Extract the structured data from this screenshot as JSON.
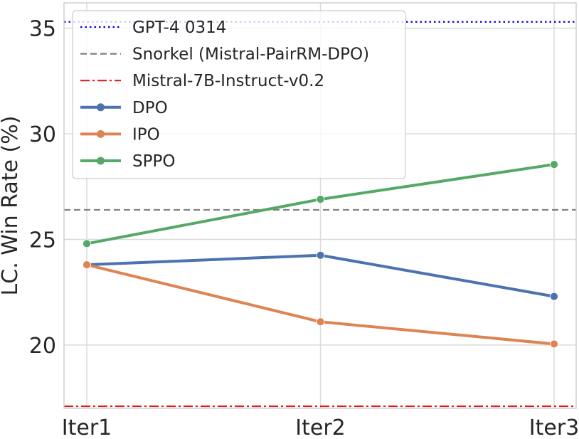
{
  "chart_data": {
    "type": "line",
    "title": "",
    "xlabel": "",
    "ylabel": "LC. Win Rate (%)",
    "categories": [
      "Iter1",
      "Iter2",
      "Iter3"
    ],
    "ylim": [
      17.0,
      36.2
    ],
    "yticks": [
      20,
      25,
      30,
      35
    ],
    "grid": true,
    "legend_position": "upper-left",
    "series": [
      {
        "name": "DPO",
        "values": [
          23.8,
          24.25,
          22.3
        ],
        "color": "#4c72b0",
        "marker": "circle",
        "style": "solid"
      },
      {
        "name": "IPO",
        "values": [
          23.8,
          21.1,
          20.05
        ],
        "color": "#dd8452",
        "marker": "circle",
        "style": "solid"
      },
      {
        "name": "SPPO",
        "values": [
          24.8,
          26.9,
          28.55
        ],
        "color": "#55a868",
        "marker": "circle",
        "style": "solid"
      }
    ],
    "reference_lines": [
      {
        "name": "GPT-4 0314",
        "value": 35.3,
        "color": "#0000ee",
        "style": "dotted"
      },
      {
        "name": "Snorkel (Mistral-PairRM-DPO)",
        "value": 26.4,
        "color": "#7f7f7f",
        "style": "dashed"
      },
      {
        "name": "Mistral-7B-Instruct-v0.2",
        "value": 17.1,
        "color": "#e31a1c",
        "style": "dashdot"
      }
    ]
  }
}
